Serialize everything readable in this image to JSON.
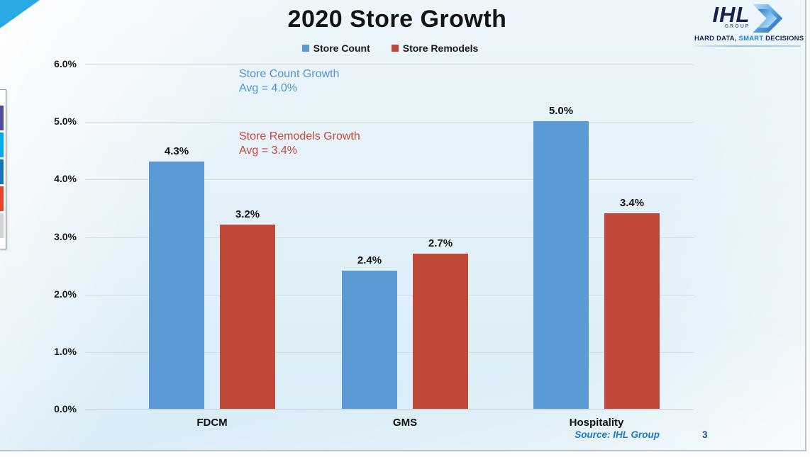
{
  "slide": {
    "title": "2020 Store Growth",
    "page_number": "3",
    "source": "Source: IHL Group",
    "logo": {
      "name": "IHL",
      "group": "GROUP",
      "tagline_prefix": "HARD DATA, ",
      "tagline_highlight": "SMART",
      "tagline_suffix": " DECISIONS"
    }
  },
  "chart_data": {
    "type": "bar",
    "title": "2020 Store Growth",
    "categories": [
      "FDCM",
      "GMS",
      "Hospitality"
    ],
    "series": [
      {
        "name": "Store Count",
        "color": "#5B9BD5",
        "values": [
          4.3,
          2.4,
          5.0
        ],
        "data_labels": [
          "4.3%",
          "2.4%",
          "5.0%"
        ]
      },
      {
        "name": "Store Remodels",
        "color": "#C1493A",
        "values": [
          3.2,
          2.7,
          3.4
        ],
        "data_labels": [
          "3.2%",
          "2.7%",
          "3.4%"
        ]
      }
    ],
    "y_axis": {
      "min": 0,
      "max": 6,
      "unit": "%",
      "tick_labels": [
        "0.0%",
        "1.0%",
        "2.0%",
        "3.0%",
        "4.0%",
        "5.0%",
        "6.0%"
      ]
    },
    "grid": true,
    "legend_position": "top",
    "annotations": [
      {
        "line1": "Store Count Growth",
        "line2": "Avg = 4.0%",
        "color": "#5292D4"
      },
      {
        "line1": "Store Remodels Growth",
        "line2": "Avg = 3.4%",
        "color": "#C8473C"
      }
    ]
  },
  "side_palette": {
    "colors": [
      "#4F4B9B",
      "#00AEEF",
      "#1B75BB",
      "#E8472E",
      "#D3D3D3"
    ]
  }
}
